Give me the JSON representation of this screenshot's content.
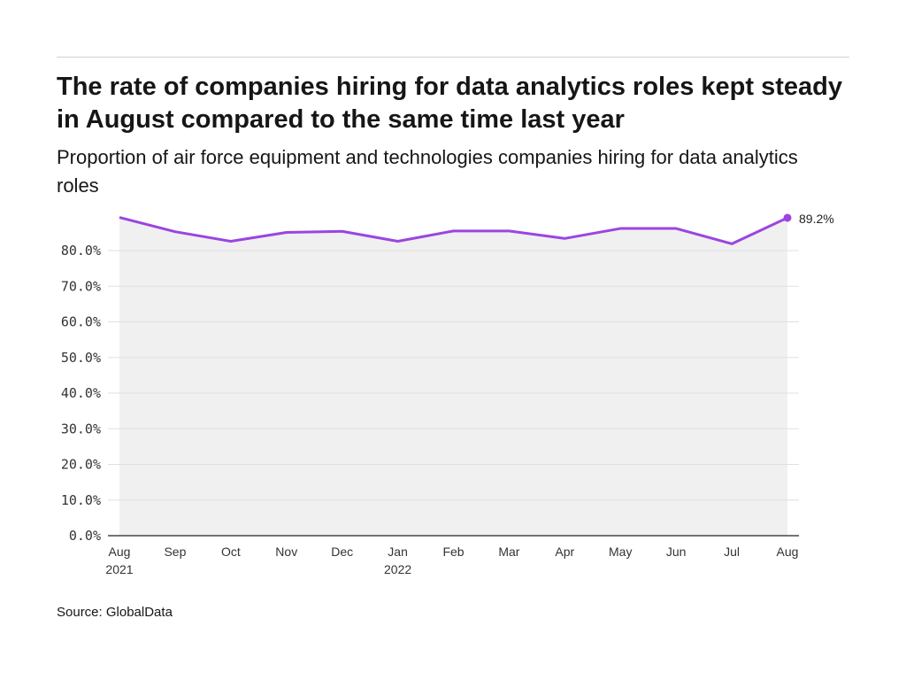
{
  "title": "The rate of companies hiring for data analytics roles kept steady in August compared to the same time last year",
  "subtitle": "Proportion of air force equipment and technologies companies hiring for data analytics roles",
  "source": "Source: GlobalData",
  "colors": {
    "line": "#9b45e0",
    "area": "#f0f0f0",
    "grid": "#e0e0e0"
  },
  "chart_data": {
    "type": "area",
    "categories": [
      [
        "Aug",
        "2021"
      ],
      [
        "Sep",
        ""
      ],
      [
        "Oct",
        ""
      ],
      [
        "Nov",
        ""
      ],
      [
        "Dec",
        ""
      ],
      [
        "Jan",
        "2022"
      ],
      [
        "Feb",
        ""
      ],
      [
        "Mar",
        ""
      ],
      [
        "Apr",
        ""
      ],
      [
        "May",
        ""
      ],
      [
        "Jun",
        ""
      ],
      [
        "Jul",
        ""
      ],
      [
        "Aug",
        ""
      ]
    ],
    "values": [
      89.3,
      85.3,
      82.6,
      85.1,
      85.4,
      82.6,
      85.5,
      85.5,
      83.4,
      86.2,
      86.2,
      81.9,
      89.2
    ],
    "yticks": [
      "0.0%",
      "10.0%",
      "20.0%",
      "30.0%",
      "40.0%",
      "50.0%",
      "60.0%",
      "70.0%",
      "80.0%"
    ],
    "ylim": [
      0,
      90
    ],
    "end_label": "89.2%",
    "grid": true
  }
}
